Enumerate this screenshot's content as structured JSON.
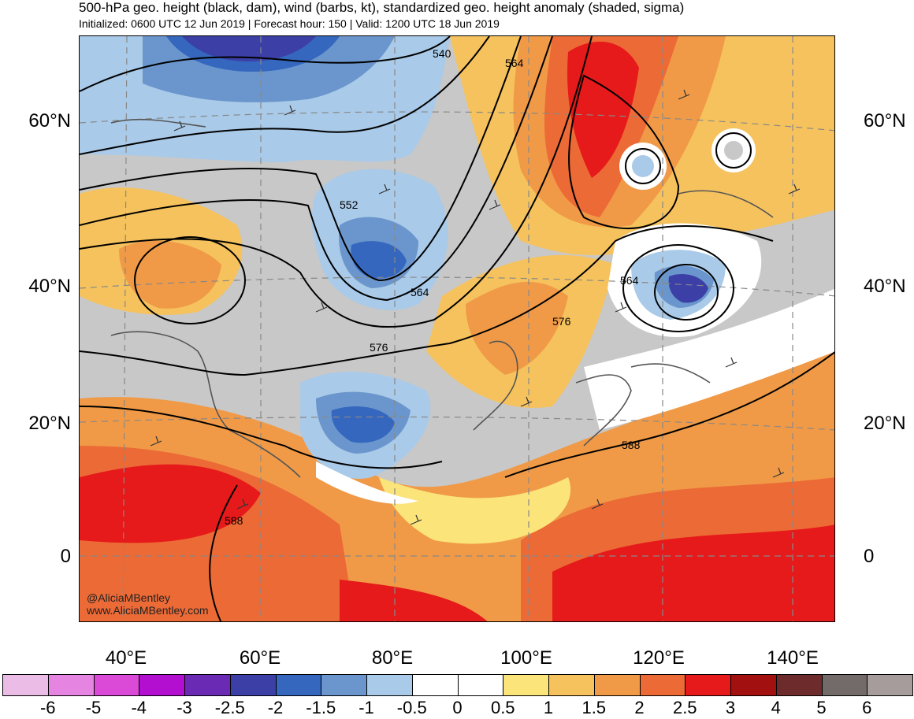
{
  "header": {
    "title": "500-hPa geo. height (black, dam), wind (barbs, kt), standardized geo. height anomaly (shaded, sigma)",
    "subtitle": "Initialized: 0600 UTC 12 Jun 2019 | Forecast hour: 150 | Valid: 1200 UTC 18 Jun 2019"
  },
  "map": {
    "lat_labels": [
      "60°N",
      "40°N",
      "20°N",
      "0"
    ],
    "lon_labels": [
      "40°E",
      "60°E",
      "80°E",
      "100°E",
      "120°E",
      "140°E"
    ],
    "contour_labels": [
      "540",
      "564",
      "552",
      "564",
      "576",
      "564",
      "576",
      "588",
      "588"
    ],
    "credit_line1": "@AliciaMBentley",
    "credit_line2": "www.AliciaMBentley.com"
  },
  "colorbar": {
    "labels": [
      "-6",
      "-5",
      "-4",
      "-3",
      "-2.5",
      "-2",
      "-1.5",
      "-1",
      "-0.5",
      "0",
      "0.5",
      "1",
      "1.5",
      "2",
      "2.5",
      "3",
      "4",
      "5",
      "6"
    ],
    "colors": [
      "#ebbde6",
      "#e684e2",
      "#db4ad7",
      "#b30fd0",
      "#6a2ab4",
      "#3b3fa6",
      "#3567be",
      "#6b96cd",
      "#a9cae8",
      "#ffffff",
      "#ffffff",
      "#fbe47a",
      "#f5c25d",
      "#f09a47",
      "#ec6a36",
      "#e61a1a",
      "#a31010",
      "#6e2b2b",
      "#736a6a",
      "#a69c9c"
    ]
  }
}
